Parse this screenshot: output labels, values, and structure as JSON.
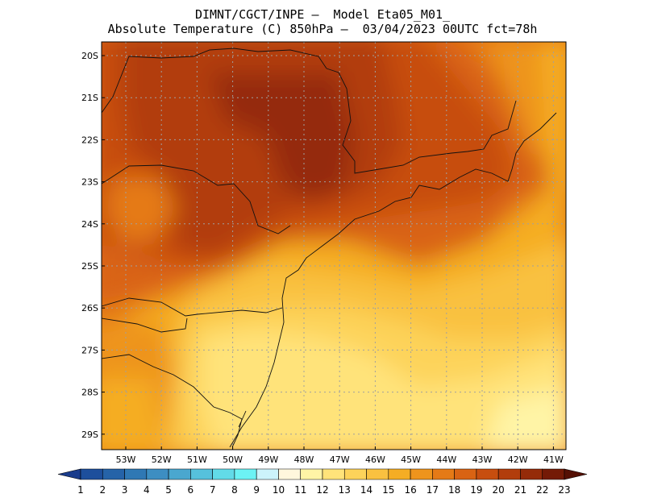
{
  "header": {
    "line1": "DIMNT/CGCT/INPE –  Model Eta05_M01_",
    "line2": "Absolute Temperature (C) 850hPa –  03/04/2023 00UTC fct=78h"
  },
  "axes": {
    "lat_labels": [
      "20S",
      "21S",
      "22S",
      "23S",
      "24S",
      "25S",
      "26S",
      "27S",
      "28S",
      "29S"
    ],
    "lon_labels": [
      "53W",
      "52W",
      "51W",
      "50W",
      "49W",
      "48W",
      "47W",
      "46W",
      "45W",
      "44W",
      "43W",
      "42W",
      "41W"
    ]
  },
  "colorbar": {
    "labels": [
      "1",
      "2",
      "3",
      "4",
      "5",
      "6",
      "7",
      "8",
      "9",
      "10",
      "11",
      "12",
      "13",
      "14",
      "15",
      "16",
      "17",
      "18",
      "19",
      "20",
      "21",
      "22",
      "23"
    ],
    "colors": [
      "#1a3c8c",
      "#1d4f9c",
      "#2563a8",
      "#2f78b4",
      "#3d8ec2",
      "#4aa7cf",
      "#56c1dc",
      "#62dbe8",
      "#6cf2f4",
      "#ccf3fb",
      "#fff7dd",
      "#fff4a6",
      "#ffe37a",
      "#fdd35a",
      "#f9c140",
      "#f5ad24",
      "#ee941c",
      "#e57a16",
      "#d96313",
      "#c74e0f",
      "#b23d0c",
      "#952b09",
      "#741a06",
      "#551004"
    ]
  },
  "map_colors": {
    "t13": "#ffe37a",
    "t14": "#fdd35a",
    "t15": "#f9c140",
    "t16": "#f5ad24",
    "t17": "#ee941c",
    "t18": "#e57a16",
    "t19": "#d96313",
    "t20": "#c74e0f",
    "t21": "#b23d0c",
    "t22": "#952b09",
    "t12": "#fff4a6"
  }
}
